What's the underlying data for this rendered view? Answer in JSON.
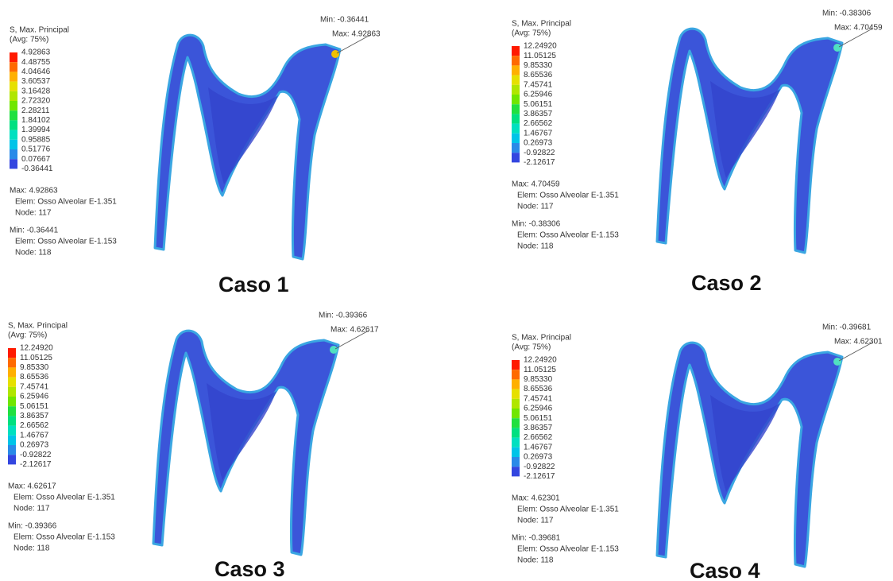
{
  "panels": [
    {
      "caption": "Caso 1",
      "legend": {
        "title": "S, Max. Principal",
        "subtitle": "(Avg: 75%)",
        "values": [
          "4.92863",
          "4.48755",
          "4.04646",
          "3.60537",
          "3.16428",
          "2.72320",
          "2.28211",
          "1.84102",
          "1.39994",
          "0.95885",
          "0.51776",
          "0.07667",
          "-0.36441"
        ]
      },
      "max_info": [
        "Max: 4.92863",
        "Elem: Osso Alveolar E-1.351",
        "Node: 117"
      ],
      "min_info": [
        "Min: -0.36441",
        "Elem: Osso Alveolar E-1.153",
        "Node: 118"
      ],
      "callout": {
        "min": "Min: -0.36441",
        "max": "Max: 4.92863"
      }
    },
    {
      "caption": "Caso 2",
      "legend": {
        "title": "S, Max. Principal",
        "subtitle": "(Avg: 75%)",
        "values": [
          "12.24920",
          "11.05125",
          "9.85330",
          "8.65536",
          "7.45741",
          "6.25946",
          "5.06151",
          "3.86357",
          "2.66562",
          "1.46767",
          "0.26973",
          "-0.92822",
          "-2.12617"
        ]
      },
      "max_info": [
        "Max: 4.70459",
        "Elem: Osso Alveolar E-1.351",
        "Node: 117"
      ],
      "min_info": [
        "Min: -0.38306",
        "Elem: Osso Alveolar E-1.153",
        "Node: 118"
      ],
      "callout": {
        "min": "Min: -0.38306",
        "max": "Max: 4.70459"
      }
    },
    {
      "caption": "Caso 3",
      "legend": {
        "title": "S, Max. Principal",
        "subtitle": "(Avg: 75%)",
        "values": [
          "12.24920",
          "11.05125",
          "9.85330",
          "8.65536",
          "7.45741",
          "6.25946",
          "5.06151",
          "3.86357",
          "2.66562",
          "1.46767",
          "0.26973",
          "-0.92822",
          "-2.12617"
        ]
      },
      "max_info": [
        "Max: 4.62617",
        "Elem: Osso Alveolar E-1.351",
        "Node: 117"
      ],
      "min_info": [
        "Min: -0.39366",
        "Elem: Osso Alveolar E-1.153",
        "Node: 118"
      ],
      "callout": {
        "min": "Min: -0.39366",
        "max": "Max: 4.62617"
      }
    },
    {
      "caption": "Caso 4",
      "legend": {
        "title": "S, Max. Principal",
        "subtitle": "(Avg: 75%)",
        "values": [
          "12.24920",
          "11.05125",
          "9.85330",
          "8.65536",
          "7.45741",
          "6.25946",
          "5.06151",
          "3.86357",
          "2.66562",
          "1.46767",
          "0.26973",
          "-0.92822",
          "-2.12617"
        ]
      },
      "max_info": [
        "Max: 4.62301",
        "Elem: Osso Alveolar E-1.351",
        "Node: 117"
      ],
      "min_info": [
        "Min: -0.39681",
        "Elem: Osso Alveolar E-1.153",
        "Node: 118"
      ],
      "callout": {
        "min": "Min: -0.39681",
        "max": "Max: 4.62301"
      }
    }
  ]
}
